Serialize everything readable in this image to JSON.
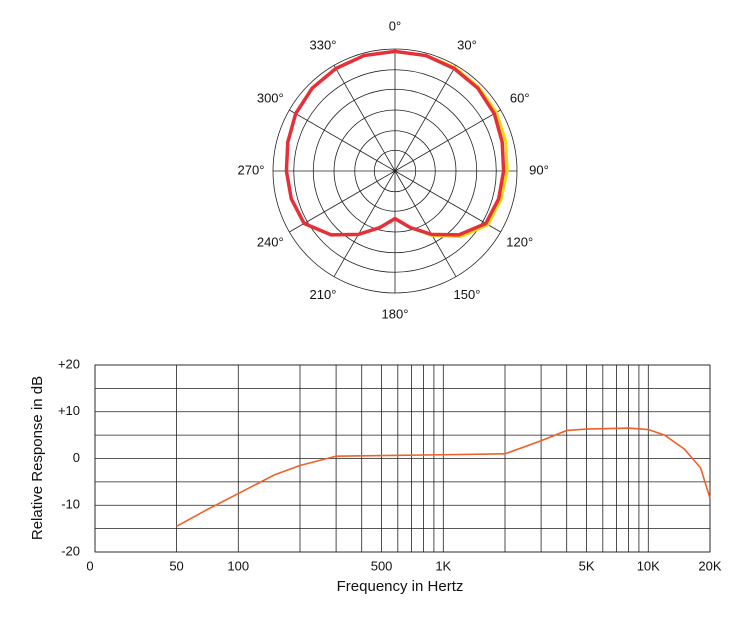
{
  "chart_data": [
    {
      "type": "polar",
      "theta": [
        0,
        15,
        30,
        45,
        60,
        75,
        90,
        105,
        120,
        135,
        150,
        165,
        180,
        195,
        210,
        225,
        240,
        255,
        270,
        285,
        300,
        315,
        330,
        345
      ],
      "thetaticks": [
        {
          "value": 0,
          "label": "0°"
        },
        {
          "value": 30,
          "label": "30°"
        },
        {
          "value": 60,
          "label": "60°"
        },
        {
          "value": 90,
          "label": "90°"
        },
        {
          "value": 120,
          "label": "120°"
        },
        {
          "value": 150,
          "label": "150°"
        },
        {
          "value": 180,
          "label": "180°"
        },
        {
          "value": 210,
          "label": "210°"
        },
        {
          "value": 240,
          "label": "240°"
        },
        {
          "value": 270,
          "label": "270°"
        },
        {
          "value": 300,
          "label": "300°"
        },
        {
          "value": 330,
          "label": "330°"
        }
      ],
      "rlim": [
        0,
        1
      ],
      "rticks": [
        0.17,
        0.33,
        0.5,
        0.67,
        0.83,
        1
      ],
      "series": [
        {
          "color": "#f5d90a",
          "values": [
            0.98,
            0.98,
            0.98,
            0.97,
            0.96,
            0.94,
            0.92,
            0.9,
            0.88,
            0.76,
            0.61,
            0.48,
            0.39,
            0.48,
            0.6,
            0.74,
            0.86,
            0.88,
            0.89,
            0.91,
            0.94,
            0.96,
            0.97,
            0.98
          ]
        },
        {
          "color": "#e5303a",
          "values": [
            0.98,
            0.98,
            0.97,
            0.96,
            0.94,
            0.91,
            0.89,
            0.88,
            0.86,
            0.74,
            0.6,
            0.48,
            0.39,
            0.48,
            0.6,
            0.74,
            0.86,
            0.88,
            0.89,
            0.91,
            0.94,
            0.96,
            0.97,
            0.98
          ]
        }
      ]
    },
    {
      "type": "line",
      "xlabel": "Frequency in Hertz",
      "ylabel": "Relative Response in dB",
      "xscale": "log",
      "x": [
        50,
        70,
        100,
        150,
        200,
        300,
        1000,
        2000,
        3000,
        4000,
        5000,
        8000,
        10000,
        12000,
        15000,
        18000,
        20000
      ],
      "values": [
        -14.5,
        -11,
        -7.5,
        -3.5,
        -1.5,
        0.5,
        0.8,
        1,
        3.8,
        6,
        6.3,
        6.5,
        6.2,
        5,
        2,
        -2,
        -8.5
      ],
      "color": "#f0602a",
      "xlim": [
        20,
        20000
      ],
      "xticks": [
        {
          "value": 20,
          "label": "0"
        },
        50,
        100,
        500,
        {
          "value": 1000,
          "label": "1K"
        },
        {
          "value": 5000,
          "label": "5K"
        },
        {
          "value": 10000,
          "label": "10K"
        },
        {
          "value": 20000,
          "label": "20K"
        }
      ],
      "xminor": [
        200,
        300,
        400,
        600,
        700,
        800,
        900,
        2000,
        3000,
        4000,
        6000,
        7000,
        8000,
        9000
      ],
      "ylim": [
        -20,
        20
      ],
      "yticks": [
        -20,
        -10,
        0,
        {
          "value": 10,
          "label": "+10"
        },
        {
          "value": 20,
          "label": "+20"
        }
      ],
      "yminor": [
        -15,
        -5,
        5,
        15
      ],
      "grid": true
    }
  ]
}
